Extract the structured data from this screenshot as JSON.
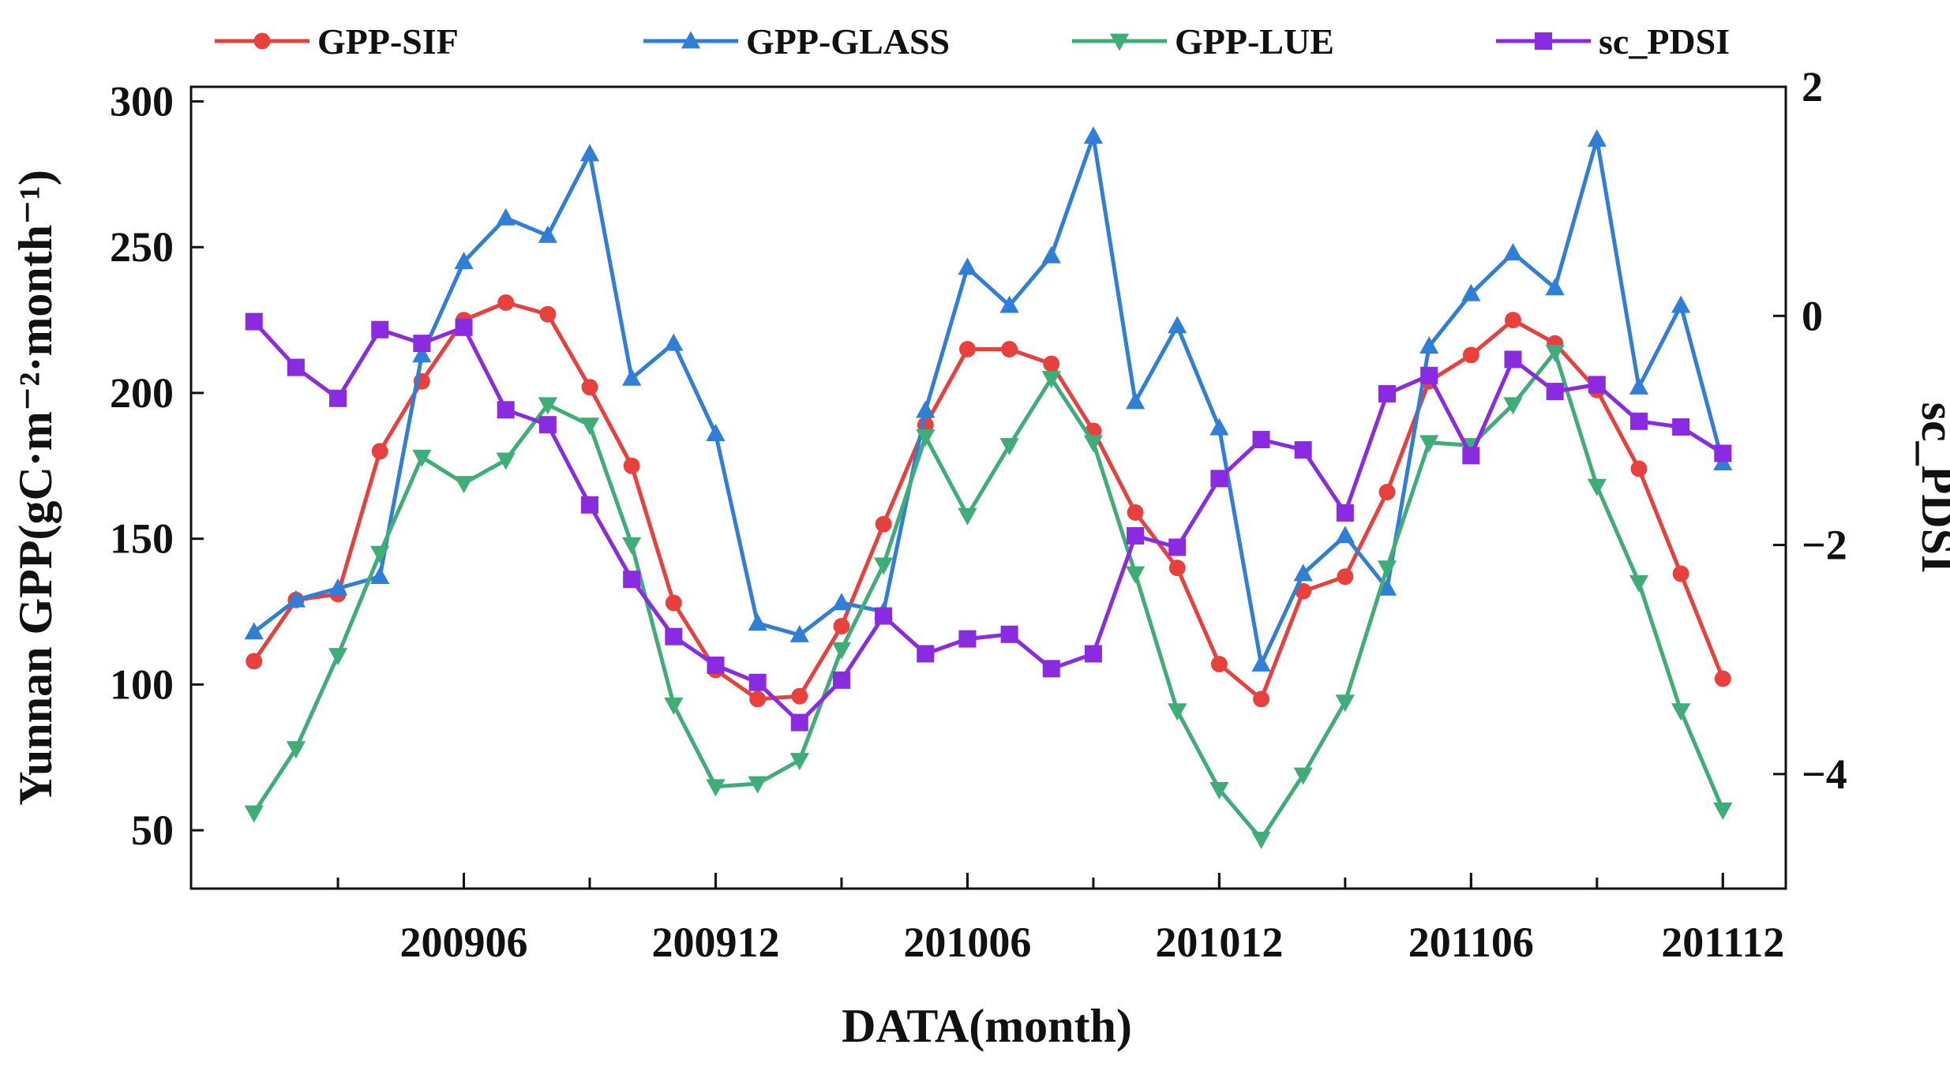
{
  "chart_data": {
    "type": "line",
    "xlabel": "DATA(month)",
    "ylabel_left": "Yunnan GPP(gC·m⁻²·month⁻¹)",
    "ylabel_right": "sc_PDSI",
    "x_ticks": [
      "200906",
      "200912",
      "201006",
      "201012",
      "201106",
      "201112"
    ],
    "x_months": [
      "200901",
      "200902",
      "200903",
      "200904",
      "200905",
      "200906",
      "200907",
      "200908",
      "200909",
      "200910",
      "200911",
      "200912",
      "201001",
      "201002",
      "201003",
      "201004",
      "201005",
      "201006",
      "201007",
      "201008",
      "201009",
      "201010",
      "201011",
      "201012",
      "201101",
      "201102",
      "201103",
      "201104",
      "201105",
      "201106",
      "201107",
      "201108",
      "201109",
      "201110",
      "201111",
      "201112"
    ],
    "left_axis": {
      "ylim": [
        30,
        305
      ],
      "ticks": [
        50,
        100,
        150,
        200,
        250,
        300
      ]
    },
    "right_axis": {
      "ylim": [
        -5,
        2
      ],
      "ticks": [
        2,
        0,
        -2,
        -4
      ]
    },
    "legend_position": "top",
    "grid": false,
    "series": [
      {
        "name": "GPP-SIF",
        "axis": "left",
        "color": "#e8413d",
        "marker": "circle",
        "values": [
          108,
          129,
          131,
          180,
          204,
          225,
          231,
          227,
          202,
          175,
          128,
          105,
          95,
          96,
          120,
          155,
          189,
          215,
          215,
          210,
          187,
          159,
          140,
          107,
          95,
          132,
          137,
          166,
          204,
          213,
          225,
          217,
          201,
          174,
          138,
          102
        ]
      },
      {
        "name": "GPP-GLASS",
        "axis": "left",
        "color": "#2f7fd8",
        "marker": "triangle-up",
        "values": [
          118,
          129,
          133,
          137,
          213,
          245,
          260,
          254,
          282,
          205,
          217,
          186,
          121,
          117,
          128,
          125,
          194,
          243,
          230,
          247,
          288,
          197,
          223,
          188,
          107,
          138,
          151,
          133,
          216,
          234,
          248,
          236,
          287,
          202,
          230,
          176
        ]
      },
      {
        "name": "GPP-LUE",
        "axis": "left",
        "color": "#3fad78",
        "marker": "triangle-down",
        "values": [
          56,
          78,
          110,
          145,
          178,
          169,
          177,
          196,
          189,
          148,
          93,
          65,
          66,
          74,
          112,
          141,
          185,
          158,
          182,
          205,
          183,
          138,
          91,
          64,
          47,
          69,
          94,
          140,
          183,
          182,
          196,
          214,
          168,
          135,
          91,
          57
        ]
      },
      {
        "name": "sc_PDSI",
        "axis": "right",
        "color": "#8a2be2",
        "marker": "square",
        "values": [
          -0.05,
          -0.45,
          -0.72,
          -0.12,
          -0.24,
          -0.1,
          -0.82,
          -0.95,
          -1.65,
          -2.3,
          -2.8,
          -3.05,
          -3.2,
          -3.55,
          -3.18,
          -2.62,
          -2.95,
          -2.82,
          -2.78,
          -3.08,
          -2.95,
          -1.92,
          -2.02,
          -1.42,
          -1.08,
          -1.17,
          -1.72,
          -0.68,
          -0.52,
          -1.22,
          -0.38,
          -0.66,
          -0.6,
          -0.92,
          -0.97,
          -1.2
        ]
      }
    ]
  }
}
